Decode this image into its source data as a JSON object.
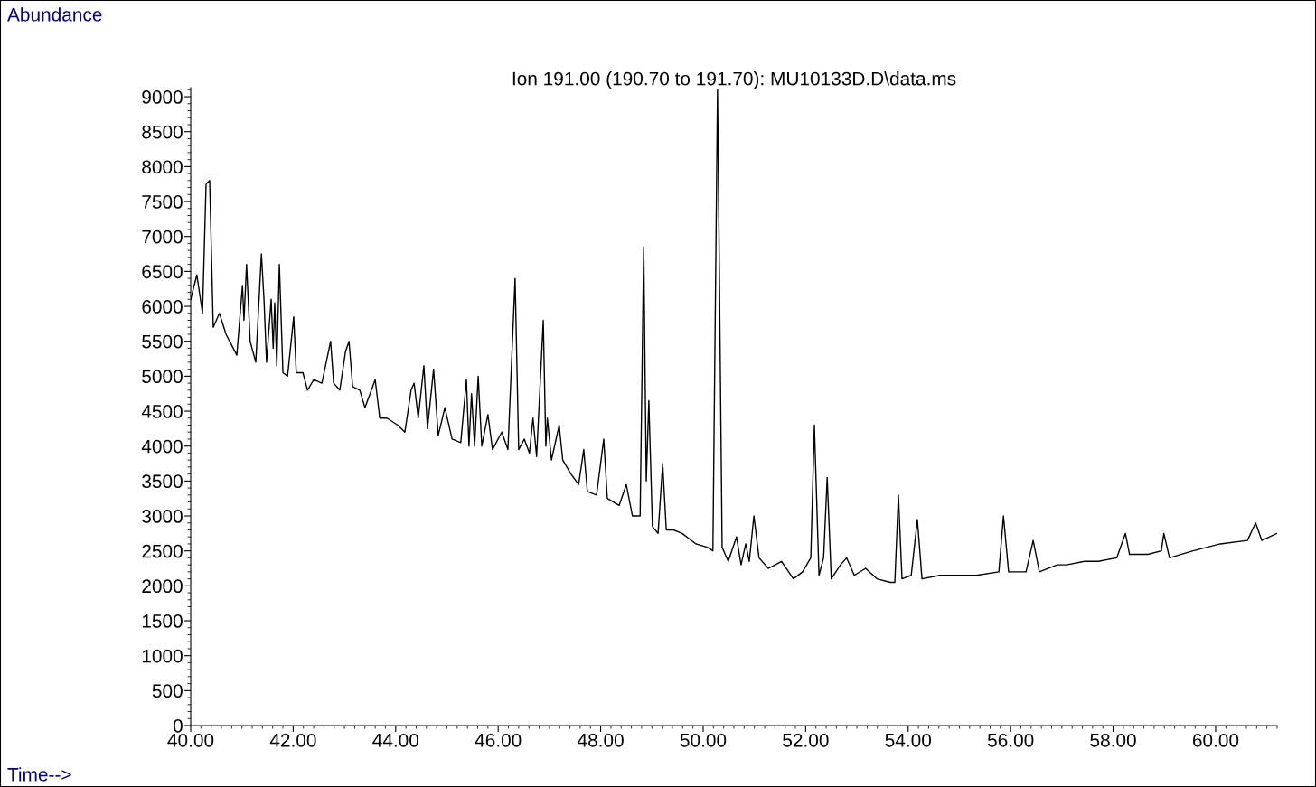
{
  "chart_data": {
    "type": "line",
    "title": "Ion 191.00 (190.70 to 191.70): MU10133D.D\\data.ms",
    "xlabel": "Time-->",
    "ylabel": "Abundance",
    "x": [
      40.0,
      40.12,
      40.23,
      40.3,
      40.37,
      40.44,
      40.56,
      40.69,
      40.9,
      41.01,
      41.04,
      41.09,
      41.16,
      41.27,
      41.38,
      41.43,
      41.48,
      41.57,
      41.61,
      41.64,
      41.68,
      41.73,
      41.8,
      41.89,
      42.01,
      42.06,
      42.19,
      42.28,
      42.4,
      42.56,
      42.73,
      42.79,
      42.91,
      43.02,
      43.09,
      43.16,
      43.3,
      43.4,
      43.6,
      43.69,
      43.83,
      44.04,
      44.18,
      44.3,
      44.36,
      44.44,
      44.55,
      44.62,
      44.74,
      44.83,
      44.96,
      45.1,
      45.27,
      45.38,
      45.43,
      45.48,
      45.54,
      45.61,
      45.68,
      45.8,
      45.89,
      46.07,
      46.19,
      46.33,
      46.4,
      46.51,
      46.61,
      46.68,
      46.75,
      46.88,
      46.93,
      46.96,
      47.04,
      47.19,
      47.26,
      47.42,
      47.57,
      47.67,
      47.74,
      47.92,
      48.06,
      48.13,
      48.36,
      48.5,
      48.62,
      48.77,
      48.84,
      48.89,
      48.94,
      49.01,
      49.12,
      49.21,
      49.28,
      49.42,
      49.59,
      49.86,
      50.09,
      50.19,
      50.28,
      50.37,
      50.49,
      50.65,
      50.74,
      50.83,
      50.9,
      50.99,
      51.09,
      51.27,
      51.53,
      51.76,
      51.94,
      52.1,
      52.17,
      52.26,
      52.35,
      52.42,
      52.5,
      52.68,
      52.8,
      52.95,
      53.17,
      53.39,
      53.65,
      53.74,
      53.81,
      53.88,
      54.06,
      54.18,
      54.27,
      54.62,
      54.97,
      55.33,
      55.77,
      55.86,
      55.96,
      56.3,
      56.44,
      56.56,
      56.91,
      57.09,
      57.44,
      57.71,
      58.07,
      58.24,
      58.32,
      58.68,
      58.94,
      58.99,
      59.1,
      59.56,
      60.09,
      60.62,
      60.78,
      60.9,
      61.2
    ],
    "series": [
      {
        "color": "#000000",
        "values": [
          6100,
          6450,
          5900,
          7750,
          7800,
          5700,
          5900,
          5600,
          5300,
          6300,
          5800,
          6600,
          5500,
          5200,
          6750,
          6100,
          5200,
          6100,
          5400,
          6050,
          5150,
          6600,
          5050,
          5000,
          5850,
          5050,
          5050,
          4800,
          4950,
          4900,
          5500,
          4900,
          4800,
          5350,
          5500,
          4850,
          4800,
          4550,
          4950,
          4400,
          4400,
          4300,
          4200,
          4800,
          4900,
          4400,
          5150,
          4250,
          5100,
          4150,
          4550,
          4100,
          4050,
          4950,
          4000,
          4750,
          4000,
          5000,
          4000,
          4450,
          3950,
          4200,
          3950,
          6400,
          3950,
          4100,
          3900,
          4400,
          3850,
          5800,
          4000,
          4400,
          3800,
          4300,
          3800,
          3600,
          3450,
          3950,
          3350,
          3300,
          4100,
          3250,
          3150,
          3450,
          3000,
          3000,
          6850,
          3500,
          4650,
          2850,
          2750,
          3750,
          2800,
          2800,
          2750,
          2600,
          2550,
          2500,
          9100,
          2550,
          2350,
          2700,
          2300,
          2600,
          2350,
          3000,
          2400,
          2250,
          2350,
          2100,
          2200,
          2400,
          4300,
          2150,
          2400,
          3550,
          2100,
          2300,
          2400,
          2150,
          2250,
          2100,
          2050,
          2050,
          3300,
          2100,
          2150,
          2950,
          2100,
          2150,
          2150,
          2150,
          2200,
          3000,
          2200,
          2200,
          2650,
          2200,
          2300,
          2300,
          2350,
          2350,
          2400,
          2750,
          2450,
          2450,
          2500,
          2750,
          2400,
          2500,
          2600,
          2650,
          2900,
          2650,
          2750
        ]
      }
    ],
    "xlim": [
      40.0,
      61.2
    ],
    "ylim": [
      0,
      9130
    ],
    "xticks": [
      {
        "value": 40,
        "label": "40.00"
      },
      {
        "value": 42,
        "label": "42.00"
      },
      {
        "value": 44,
        "label": "44.00"
      },
      {
        "value": 46,
        "label": "46.00"
      },
      {
        "value": 48,
        "label": "48.00"
      },
      {
        "value": 50,
        "label": "50.00"
      },
      {
        "value": 52,
        "label": "52.00"
      },
      {
        "value": 54,
        "label": "54.00"
      },
      {
        "value": 56,
        "label": "56.00"
      },
      {
        "value": 58,
        "label": "58.00"
      },
      {
        "value": 60,
        "label": "60.00"
      }
    ],
    "yticks": [
      0,
      500,
      1000,
      1500,
      2000,
      2500,
      3000,
      3500,
      4000,
      4500,
      5000,
      5500,
      6000,
      6500,
      7000,
      7500,
      8000,
      8500,
      9000
    ],
    "grid": false,
    "marker": "none",
    "line_style": "solid"
  }
}
